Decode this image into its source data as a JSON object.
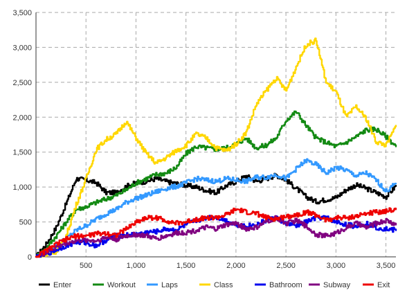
{
  "chart_data": {
    "type": "line",
    "title": "",
    "xlabel": "",
    "ylabel": "",
    "xlim": [
      0,
      3600
    ],
    "ylim": [
      0,
      3500
    ],
    "x_ticks": [
      500,
      1000,
      1500,
      2000,
      2500,
      3000,
      3500
    ],
    "x_tick_labels": [
      "500",
      "1,000",
      "1,500",
      "2,000",
      "2,500",
      "3,000",
      "3,500"
    ],
    "y_ticks": [
      0,
      500,
      1000,
      1500,
      2000,
      2500,
      3000,
      3500
    ],
    "y_tick_labels": [
      "0",
      "500",
      "1,000",
      "1,500",
      "2,000",
      "2,500",
      "3,000",
      "3,500"
    ],
    "grid": true,
    "legend_position": "bottom",
    "series": [
      {
        "name": "Enter",
        "color": "#000000",
        "x": [
          0,
          100,
          200,
          300,
          400,
          500,
          600,
          700,
          800,
          900,
          1000,
          1100,
          1200,
          1300,
          1400,
          1500,
          1600,
          1700,
          1800,
          1900,
          2000,
          2100,
          2200,
          2300,
          2400,
          2500,
          2600,
          2700,
          2800,
          2900,
          3000,
          3100,
          3200,
          3300,
          3400,
          3500,
          3600
        ],
        "values": [
          0,
          180,
          420,
          760,
          1120,
          1100,
          1060,
          920,
          920,
          1010,
          1060,
          1080,
          1120,
          1080,
          1050,
          1020,
          1000,
          950,
          920,
          1020,
          1080,
          1160,
          1080,
          1120,
          1170,
          1100,
          980,
          860,
          790,
          820,
          850,
          960,
          1030,
          980,
          920,
          860,
          1020
        ]
      },
      {
        "name": "Workout",
        "color": "#138a13",
        "x": [
          0,
          100,
          200,
          300,
          400,
          500,
          600,
          700,
          800,
          900,
          1000,
          1100,
          1200,
          1300,
          1400,
          1500,
          1600,
          1700,
          1800,
          1900,
          2000,
          2100,
          2200,
          2300,
          2400,
          2500,
          2600,
          2700,
          2800,
          2900,
          3000,
          3100,
          3200,
          3300,
          3400,
          3500,
          3600
        ],
        "values": [
          0,
          120,
          300,
          500,
          680,
          720,
          780,
          830,
          880,
          960,
          1060,
          1120,
          1180,
          1200,
          1280,
          1480,
          1580,
          1560,
          1540,
          1560,
          1620,
          1700,
          1560,
          1600,
          1700,
          1960,
          2080,
          1880,
          1700,
          1640,
          1580,
          1640,
          1720,
          1820,
          1830,
          1720,
          1580
        ]
      },
      {
        "name": "Laps",
        "color": "#3399ff",
        "x": [
          0,
          100,
          200,
          300,
          400,
          500,
          600,
          700,
          800,
          900,
          1000,
          1100,
          1200,
          1300,
          1400,
          1500,
          1600,
          1700,
          1800,
          1900,
          2000,
          2100,
          2200,
          2300,
          2400,
          2500,
          2600,
          2700,
          2800,
          2900,
          3000,
          3100,
          3200,
          3300,
          3400,
          3500,
          3600
        ],
        "values": [
          0,
          70,
          160,
          260,
          380,
          450,
          540,
          620,
          680,
          780,
          840,
          880,
          930,
          980,
          1010,
          1060,
          1120,
          1100,
          1080,
          1120,
          1100,
          1080,
          1140,
          1140,
          1180,
          1120,
          1260,
          1380,
          1320,
          1200,
          1280,
          1240,
          1160,
          1200,
          1100,
          940,
          1050
        ]
      },
      {
        "name": "Class",
        "color": "#ffd700",
        "x": [
          0,
          100,
          200,
          300,
          400,
          500,
          600,
          700,
          800,
          900,
          1000,
          1100,
          1200,
          1300,
          1400,
          1500,
          1600,
          1700,
          1800,
          1900,
          2000,
          2100,
          2200,
          2300,
          2400,
          2500,
          2600,
          2700,
          2800,
          2900,
          3000,
          3100,
          3200,
          3300,
          3400,
          3500,
          3600
        ],
        "values": [
          0,
          20,
          80,
          300,
          750,
          1120,
          1540,
          1680,
          1760,
          1940,
          1700,
          1480,
          1340,
          1420,
          1520,
          1600,
          1760,
          1700,
          1560,
          1520,
          1620,
          1780,
          2180,
          2380,
          2560,
          2380,
          2720,
          3040,
          3100,
          2500,
          2360,
          2000,
          2150,
          1980,
          1650,
          1600,
          1880
        ]
      },
      {
        "name": "Bathroom",
        "color": "#0000ee",
        "x": [
          0,
          100,
          200,
          300,
          400,
          500,
          600,
          700,
          800,
          900,
          1000,
          1100,
          1200,
          1300,
          1400,
          1500,
          1600,
          1700,
          1800,
          1900,
          2000,
          2100,
          2200,
          2300,
          2400,
          2500,
          2600,
          2700,
          2800,
          2900,
          3000,
          3100,
          3200,
          3300,
          3400,
          3500,
          3600
        ],
        "values": [
          0,
          40,
          100,
          160,
          210,
          200,
          160,
          240,
          300,
          310,
          320,
          350,
          360,
          400,
          380,
          460,
          520,
          560,
          570,
          520,
          460,
          440,
          460,
          520,
          560,
          480,
          440,
          500,
          560,
          560,
          500,
          460,
          440,
          480,
          420,
          400,
          380
        ]
      },
      {
        "name": "Subway",
        "color": "#800080",
        "x": [
          0,
          100,
          200,
          300,
          400,
          500,
          600,
          700,
          800,
          900,
          1000,
          1100,
          1200,
          1300,
          1400,
          1500,
          1600,
          1700,
          1800,
          1900,
          2000,
          2100,
          2200,
          2300,
          2400,
          2500,
          2600,
          2700,
          2800,
          2900,
          3000,
          3100,
          3200,
          3300,
          3400,
          3500,
          3600
        ],
        "values": [
          0,
          60,
          140,
          200,
          230,
          240,
          230,
          280,
          250,
          300,
          320,
          300,
          260,
          300,
          340,
          350,
          380,
          420,
          400,
          460,
          480,
          400,
          420,
          500,
          560,
          480,
          520,
          440,
          320,
          300,
          340,
          420,
          480,
          420,
          480,
          520,
          460
        ]
      },
      {
        "name": "Exit",
        "color": "#ee0000",
        "x": [
          0,
          100,
          200,
          300,
          400,
          500,
          600,
          700,
          800,
          900,
          1000,
          1100,
          1200,
          1300,
          1400,
          1500,
          1600,
          1700,
          1800,
          1900,
          2000,
          2100,
          2200,
          2300,
          2400,
          2500,
          2600,
          2700,
          2800,
          2900,
          3000,
          3100,
          3200,
          3300,
          3400,
          3500,
          3600
        ],
        "values": [
          0,
          90,
          180,
          250,
          300,
          300,
          330,
          340,
          310,
          400,
          500,
          560,
          560,
          520,
          480,
          500,
          540,
          560,
          560,
          600,
          680,
          640,
          620,
          560,
          540,
          580,
          600,
          640,
          600,
          520,
          560,
          560,
          580,
          620,
          640,
          660,
          680
        ]
      }
    ]
  }
}
